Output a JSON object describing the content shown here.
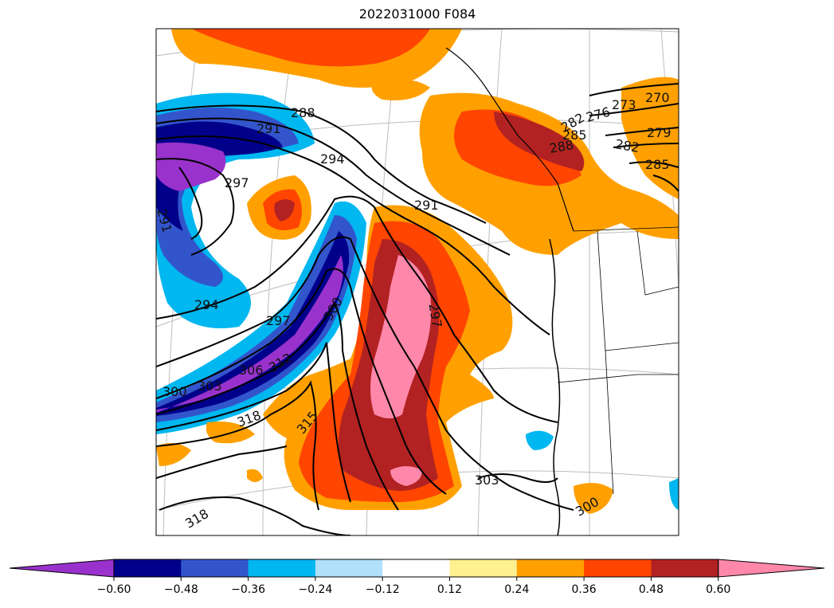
{
  "title": "2022031000 F084",
  "colors": {
    "cyan_purple": "#9932cc",
    "navy": "#00008b",
    "royal_blue": "#3355cc",
    "deep_sky": "#00b7f0",
    "light_blue": "#b0e0fa",
    "white": "#ffffff",
    "light_yellow": "#fff090",
    "orange": "#ffa000",
    "orange_red": "#ff4500",
    "firebrick": "#b22222",
    "pink": "#ff88aa"
  },
  "colorbar": {
    "colors": [
      "#9932cc",
      "#00008b",
      "#3355cc",
      "#00b7f0",
      "#b0e0fa",
      "#ffffff",
      "#fff090",
      "#ffa000",
      "#ff4500",
      "#b22222",
      "#ff88aa"
    ],
    "ticks": [
      "−0.60",
      "−0.48",
      "−0.36",
      "−0.24",
      "−0.12",
      "0.12",
      "0.24",
      "0.36",
      "0.48",
      "0.60"
    ]
  },
  "contour_labels": [
    {
      "text": "288"
    },
    {
      "text": "291"
    },
    {
      "text": "294"
    },
    {
      "text": "297"
    },
    {
      "text": "291"
    },
    {
      "text": "291"
    },
    {
      "text": "294"
    },
    {
      "text": "297"
    },
    {
      "text": "300"
    },
    {
      "text": "306"
    },
    {
      "text": "312"
    },
    {
      "text": "300"
    },
    {
      "text": "303"
    },
    {
      "text": "318"
    },
    {
      "text": "315"
    },
    {
      "text": "318"
    },
    {
      "text": "297"
    },
    {
      "text": "303"
    },
    {
      "text": "300"
    },
    {
      "text": "276"
    },
    {
      "text": "273"
    },
    {
      "text": "270"
    },
    {
      "text": "279"
    },
    {
      "text": "282"
    },
    {
      "text": "285"
    },
    {
      "text": "285"
    },
    {
      "text": "288"
    },
    {
      "text": "282"
    }
  ]
}
